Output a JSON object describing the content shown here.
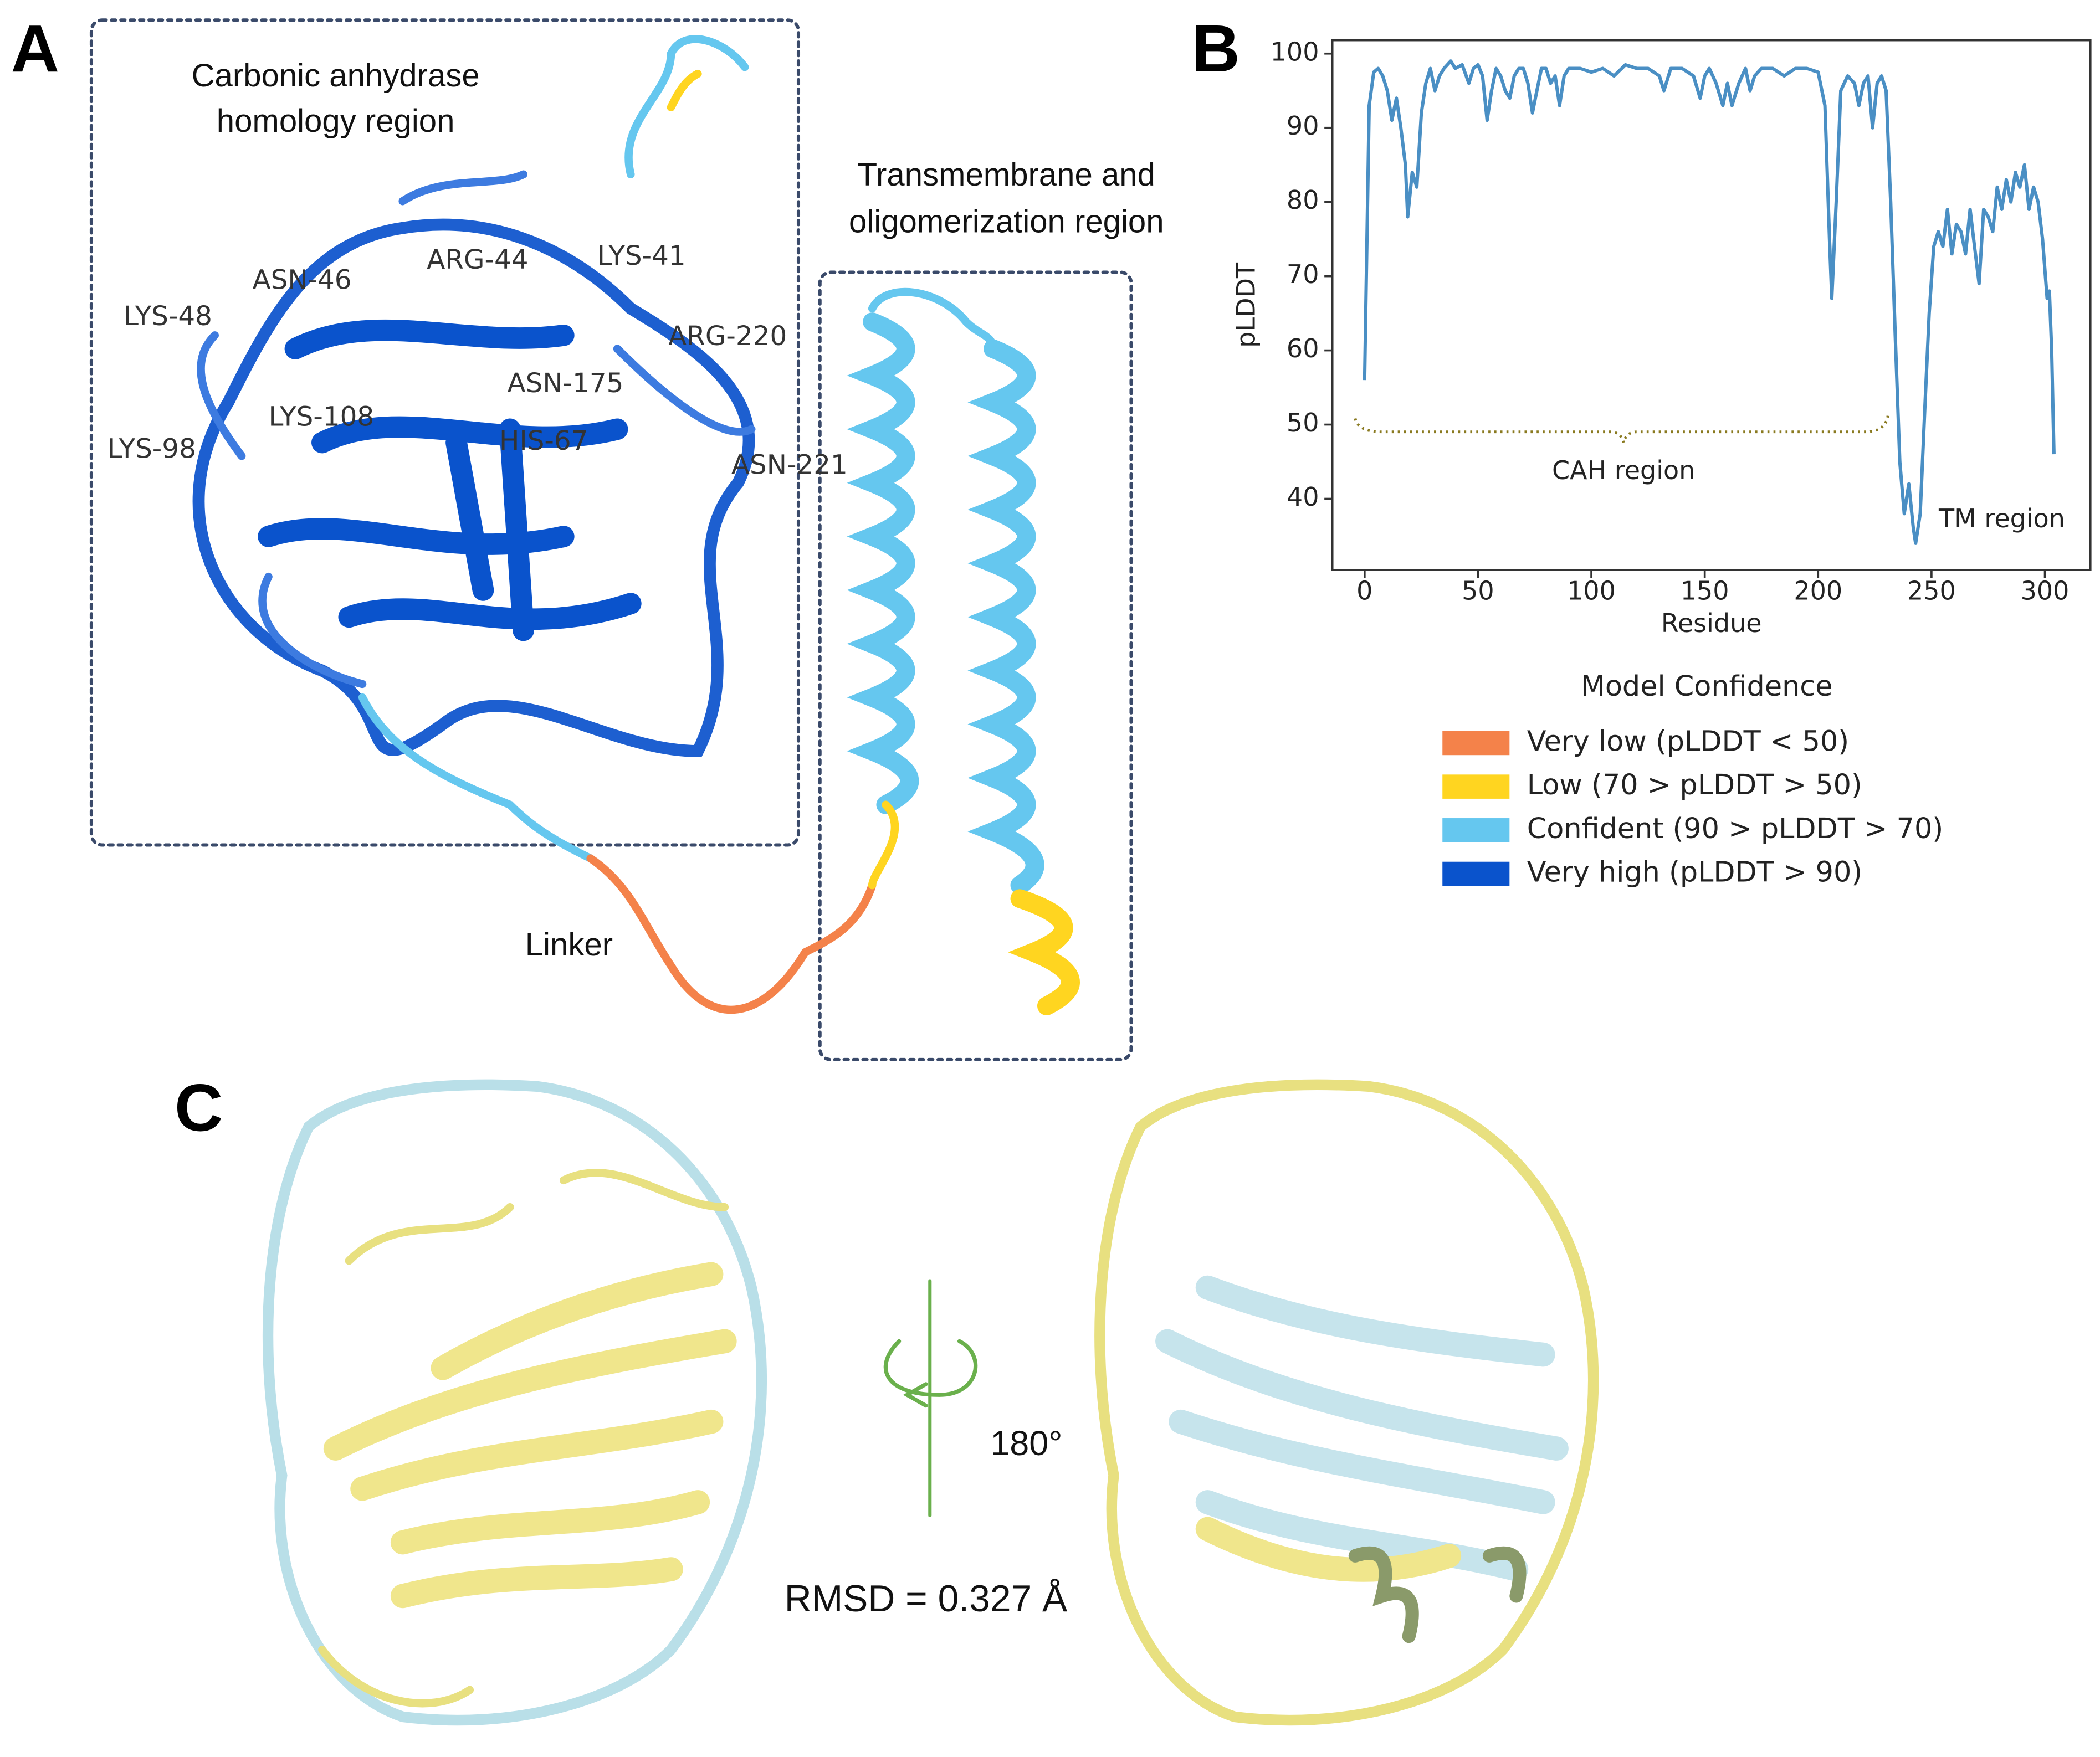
{
  "panel_labels": [
    "A",
    "B",
    "C"
  ],
  "panel_a": {
    "region_titles": [
      [
        "Carbonic anhydrase",
        "homology region"
      ],
      [
        "Transmembrane and",
        "oligomerization region"
      ]
    ],
    "linker": "Linker",
    "residues": [
      "LYS-48",
      "ASN-46",
      "ARG-44",
      "LYS-41",
      "ARG-220",
      "ASN-175",
      "LYS-108",
      "HIS-67",
      "LYS-98",
      "ASN-221"
    ]
  },
  "chart_data": {
    "type": "line",
    "x_label": "Residue",
    "y_label": "pLDDT",
    "color": "#4a8fc4",
    "x": [
      0,
      2,
      4,
      6,
      8,
      10,
      12,
      14,
      16,
      18,
      19,
      21,
      23,
      25,
      27,
      29,
      31,
      33,
      35,
      38,
      40,
      43,
      46,
      48,
      50,
      52,
      54,
      56,
      58,
      60,
      62,
      64,
      66,
      68,
      70,
      72,
      74,
      76,
      78,
      80,
      82,
      84,
      86,
      88,
      90,
      95,
      100,
      105,
      110,
      115,
      120,
      125,
      130,
      132,
      135,
      140,
      145,
      148,
      150,
      152,
      155,
      158,
      160,
      162,
      165,
      168,
      170,
      172,
      175,
      180,
      185,
      190,
      195,
      200,
      203,
      205,
      206,
      208,
      210,
      213,
      216,
      218,
      220,
      222,
      224,
      226,
      228,
      230,
      232,
      234,
      236,
      238,
      240,
      242,
      243,
      245,
      247,
      249,
      251,
      253,
      255,
      257,
      259,
      261,
      263,
      265,
      267,
      269,
      271,
      273,
      275,
      277,
      279,
      281,
      283,
      285,
      287,
      289,
      291,
      293,
      295,
      297,
      299,
      301,
      302,
      303,
      304
    ],
    "values": [
      56,
      93,
      97.5,
      98,
      97,
      95,
      91,
      94,
      90,
      85,
      78,
      84,
      82,
      92,
      96,
      98,
      95,
      97,
      98,
      99,
      98,
      98.5,
      96,
      98,
      98.5,
      97,
      91,
      95,
      98,
      97,
      95,
      94,
      97,
      98,
      98,
      96,
      92,
      95,
      98,
      98,
      96,
      97,
      93,
      97,
      98,
      98,
      97.5,
      98,
      97,
      98.5,
      98,
      98,
      97,
      95,
      98,
      98,
      97,
      94,
      97,
      98,
      96,
      93,
      96,
      93,
      96,
      98,
      95,
      97,
      98,
      98,
      97,
      98,
      98,
      97.5,
      93,
      75,
      67,
      80,
      95,
      97,
      96,
      93,
      96,
      97,
      90,
      96,
      97,
      95,
      80,
      62,
      45,
      38,
      42,
      36,
      34,
      38,
      52,
      65,
      74,
      76,
      74,
      79,
      73,
      77,
      76,
      73,
      79,
      74,
      69,
      79,
      78,
      76,
      82,
      79,
      83,
      80,
      84,
      82,
      85,
      79,
      82,
      80,
      75,
      67,
      68,
      60,
      46
    ],
    "xlim": [
      -14.2,
      320.1
    ],
    "ylim": [
      30.4,
      101.8
    ],
    "xticks": [
      0,
      50,
      100,
      150,
      200,
      250,
      300
    ],
    "yticks": [
      40,
      50,
      60,
      70,
      80,
      90,
      100
    ],
    "grid": false,
    "annotations": [
      "CAH region",
      "TM region"
    ]
  },
  "confidence_legend": {
    "title": "Model Confidence",
    "items": [
      {
        "label": "Very low (pLDDT < 50)",
        "color": "#f4824a"
      },
      {
        "label": "Low (70 > pLDDT > 50)",
        "color": "#ffd520"
      },
      {
        "label": "Confident (90 > pLDDT > 70)",
        "color": "#65c7ef"
      },
      {
        "label": "Very high (pLDDT > 90)",
        "color": "#0a53cc"
      }
    ]
  },
  "panel_c": {
    "rotation": "180°",
    "rmsd": "RMSD = 0.327 Å"
  }
}
